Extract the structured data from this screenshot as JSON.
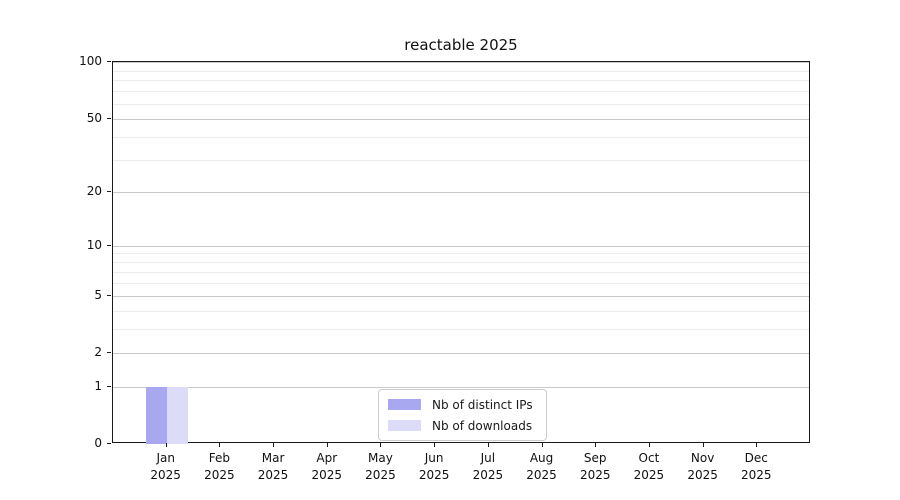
{
  "chart_data": {
    "type": "bar",
    "title": "reactable 2025",
    "categories": [
      "Jan",
      "Feb",
      "Mar",
      "Apr",
      "May",
      "Jun",
      "Jul",
      "Aug",
      "Sep",
      "Oct",
      "Nov",
      "Dec"
    ],
    "category_year": "2025",
    "series": [
      {
        "name": "Nb of distinct IPs",
        "color": "#a8a8f0",
        "values": [
          1,
          0,
          0,
          0,
          0,
          0,
          0,
          0,
          0,
          0,
          0,
          0
        ]
      },
      {
        "name": "Nb of downloads",
        "color": "#dcdcf8",
        "values": [
          1,
          0,
          0,
          0,
          0,
          0,
          0,
          0,
          0,
          0,
          0,
          0
        ]
      }
    ],
    "yscale": "log1p",
    "ylim": [
      0,
      100
    ],
    "yticks": [
      100,
      50,
      20,
      10,
      5,
      2,
      1,
      0
    ],
    "major_gridlines": [
      1,
      2,
      5,
      10,
      20,
      50,
      100
    ],
    "minor_gridlines": [
      3,
      4,
      6,
      7,
      8,
      9,
      30,
      40,
      60,
      70,
      80,
      90
    ],
    "legend_position": "lower center",
    "colors": {
      "grid_major": "#c9c9c9",
      "grid_minor": "#ececec",
      "spine": "#1a1a1a"
    }
  }
}
